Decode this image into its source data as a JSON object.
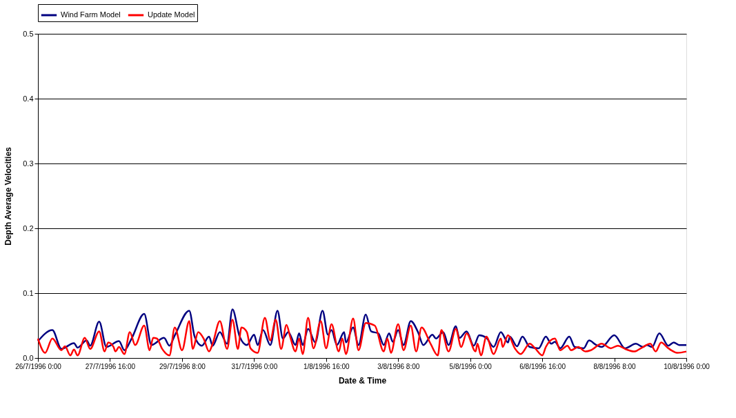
{
  "chart_data": {
    "type": "line",
    "xlabel": "Date & Time",
    "ylabel": "Depth Average Velocities",
    "ylim": [
      0,
      0.5
    ],
    "yticks": [
      {
        "value": 0,
        "label": "0.0"
      },
      {
        "value": 0.1,
        "label": "0.1"
      },
      {
        "value": 0.2,
        "label": "0.2"
      },
      {
        "value": 0.3,
        "label": "0.3"
      },
      {
        "value": 0.4,
        "label": "0.4"
      },
      {
        "value": 0.5,
        "label": "0.5"
      }
    ],
    "xlim": [
      "1996-07-26T00:00",
      "1996-08-10T00:00"
    ],
    "xticks": [
      {
        "value": "1996-07-26T00:00",
        "label": "26/7/1996 0:00"
      },
      {
        "value": "1996-07-27T16:00",
        "label": "27/7/1996 16:00"
      },
      {
        "value": "1996-07-29T08:00",
        "label": "29/7/1996 8:00"
      },
      {
        "value": "1996-07-31T00:00",
        "label": "31/7/1996 0:00"
      },
      {
        "value": "1996-08-01T16:00",
        "label": "1/8/1996 16:00"
      },
      {
        "value": "1996-08-03T08:00",
        "label": "3/8/1996 8:00"
      },
      {
        "value": "1996-08-05T00:00",
        "label": "5/8/1996 0:00"
      },
      {
        "value": "1996-08-06T16:00",
        "label": "6/8/1996 16:00"
      },
      {
        "value": "1996-08-08T08:00",
        "label": "8/8/1996 8:00"
      },
      {
        "value": "1996-08-10T00:00",
        "label": "10/8/1996 0:00"
      }
    ],
    "grid": "y",
    "legend": "top",
    "line_style": "solid",
    "series": [
      {
        "name": "Wind Farm Model",
        "color": "#000080",
        "x": [
          "1996-07-26T00:00",
          "1996-07-26T08:00",
          "1996-07-26T13:00",
          "1996-07-26T20:00",
          "1996-07-26T22:00",
          "1996-07-27T03:00",
          "1996-07-27T05:00",
          "1996-07-27T10:00",
          "1996-07-27T14:00",
          "1996-07-27T21:00",
          "1996-07-28T00:00",
          "1996-07-28T04:00",
          "1996-07-28T11:00",
          "1996-07-28T15:00",
          "1996-07-28T22:00",
          "1996-07-29T01:00",
          "1996-07-29T04:00",
          "1996-07-29T12:00",
          "1996-07-29T15:00",
          "1996-07-29T19:00",
          "1996-07-29T23:00",
          "1996-07-30T01:00",
          "1996-07-30T05:00",
          "1996-07-30T09:00",
          "1996-07-30T12:00",
          "1996-07-30T16:00",
          "1996-07-30T20:00",
          "1996-07-31T00:00",
          "1996-07-31T02:00",
          "1996-07-31T05:00",
          "1996-07-31T09:00",
          "1996-07-31T13:00",
          "1996-07-31T16:00",
          "1996-07-31T19:00",
          "1996-07-31T23:00",
          "1996-08-01T01:00",
          "1996-08-01T03:00",
          "1996-08-01T06:00",
          "1996-08-01T10:00",
          "1996-08-01T14:00",
          "1996-08-01T17:00",
          "1996-08-01T19:00",
          "1996-08-01T22:00",
          "1996-08-02T02:00",
          "1996-08-02T03:00",
          "1996-08-02T07:00",
          "1996-08-02T10:00",
          "1996-08-02T14:00",
          "1996-08-02T17:00",
          "1996-08-02T21:00",
          "1996-08-03T00:00",
          "1996-08-03T03:00",
          "1996-08-03T05:00",
          "1996-08-03T08:00",
          "1996-08-03T11:00",
          "1996-08-03T15:00",
          "1996-08-03T19:00",
          "1996-08-03T22:00",
          "1996-08-04T03:00",
          "1996-08-04T05:00",
          "1996-08-04T09:00",
          "1996-08-04T12:00",
          "1996-08-04T16:00",
          "1996-08-04T18:00",
          "1996-08-04T22:00",
          "1996-08-05T02:00",
          "1996-08-05T05:00",
          "1996-08-05T09:00",
          "1996-08-05T13:00",
          "1996-08-05T17:00",
          "1996-08-05T21:00",
          "1996-08-05T22:00",
          "1996-08-06T02:00",
          "1996-08-06T05:00",
          "1996-08-06T09:00",
          "1996-08-06T14:00",
          "1996-08-06T18:00",
          "1996-08-06T21:00",
          "1996-08-06T23:00",
          "1996-08-07T02:00",
          "1996-08-07T07:00",
          "1996-08-07T10:00",
          "1996-08-07T15:00",
          "1996-08-07T18:00",
          "1996-08-07T22:00",
          "1996-08-08T01:00",
          "1996-08-08T08:00",
          "1996-08-08T14:00",
          "1996-08-08T20:00",
          "1996-08-09T00:00",
          "1996-08-09T02:00",
          "1996-08-09T05:00",
          "1996-08-09T09:00",
          "1996-08-09T14:00",
          "1996-08-09T17:00",
          "1996-08-09T20:00",
          "1996-08-10T00:00"
        ],
        "values": [
          0.026,
          0.043,
          0.014,
          0.023,
          0.016,
          0.027,
          0.019,
          0.056,
          0.017,
          0.026,
          0.012,
          0.03,
          0.068,
          0.02,
          0.031,
          0.019,
          0.035,
          0.073,
          0.033,
          0.019,
          0.033,
          0.019,
          0.04,
          0.022,
          0.075,
          0.033,
          0.02,
          0.036,
          0.02,
          0.043,
          0.02,
          0.073,
          0.03,
          0.04,
          0.02,
          0.038,
          0.02,
          0.045,
          0.024,
          0.073,
          0.036,
          0.043,
          0.02,
          0.04,
          0.024,
          0.047,
          0.02,
          0.067,
          0.041,
          0.038,
          0.02,
          0.038,
          0.025,
          0.043,
          0.02,
          0.057,
          0.04,
          0.02,
          0.036,
          0.03,
          0.04,
          0.02,
          0.049,
          0.031,
          0.041,
          0.019,
          0.035,
          0.031,
          0.017,
          0.04,
          0.024,
          0.033,
          0.018,
          0.033,
          0.017,
          0.015,
          0.033,
          0.022,
          0.025,
          0.015,
          0.033,
          0.017,
          0.015,
          0.027,
          0.02,
          0.017,
          0.035,
          0.015,
          0.022,
          0.017,
          0.02,
          0.017,
          0.038,
          0.019,
          0.024,
          0.02,
          0.02
        ]
      },
      {
        "name": "Update Model",
        "color": "#ff0000",
        "x": [
          "1996-07-26T00:00",
          "1996-07-26T04:00",
          "1996-07-26T08:00",
          "1996-07-26T13:00",
          "1996-07-26T15:00",
          "1996-07-26T18:00",
          "1996-07-26T20:00",
          "1996-07-26T22:00",
          "1996-07-27T02:00",
          "1996-07-27T05:00",
          "1996-07-27T10:00",
          "1996-07-27T13:00",
          "1996-07-27T15:00",
          "1996-07-27T18:00",
          "1996-07-27T19:00",
          "1996-07-27T21:00",
          "1996-07-28T00:00",
          "1996-07-28T03:00",
          "1996-07-28T06:00",
          "1996-07-28T11:00",
          "1996-07-28T14:00",
          "1996-07-28T16:00",
          "1996-07-28T18:00",
          "1996-07-28T21:00",
          "1996-07-29T01:00",
          "1996-07-29T04:00",
          "1996-07-29T08:00",
          "1996-07-29T12:00",
          "1996-07-29T14:00",
          "1996-07-29T17:00",
          "1996-07-29T20:00",
          "1996-07-29T23:00",
          "1996-07-30T01:00",
          "1996-07-30T05:00",
          "1996-07-30T09:00",
          "1996-07-30T12:00",
          "1996-07-30T15:00",
          "1996-07-30T17:00",
          "1996-07-30T20:00",
          "1996-07-30T22:00",
          "1996-07-31T02:00",
          "1996-07-31T06:00",
          "1996-07-31T09:00",
          "1996-07-31T12:00",
          "1996-07-31T15:00",
          "1996-07-31T18:00",
          "1996-07-31T20:00",
          "1996-07-31T23:00",
          "1996-08-01T01:00",
          "1996-08-01T03:00",
          "1996-08-01T06:00",
          "1996-08-01T09:00",
          "1996-08-01T13:00",
          "1996-08-01T16:00",
          "1996-08-01T19:00",
          "1996-08-01T23:00",
          "1996-08-02T01:00",
          "1996-08-02T03:00",
          "1996-08-02T07:00",
          "1996-08-02T10:00",
          "1996-08-02T14:00",
          "1996-08-02T19:00",
          "1996-08-03T00:00",
          "1996-08-03T02:00",
          "1996-08-03T04:00",
          "1996-08-03T08:00",
          "1996-08-03T11:00",
          "1996-08-03T15:00",
          "1996-08-03T18:00",
          "1996-08-03T21:00",
          "1996-08-04T02:00",
          "1996-08-04T06:00",
          "1996-08-04T08:00",
          "1996-08-04T12:00",
          "1996-08-04T16:00",
          "1996-08-04T19:00",
          "1996-08-04T22:00",
          "1996-08-05T03:00",
          "1996-08-05T04:00",
          "1996-08-05T06:00",
          "1996-08-05T09:00",
          "1996-08-05T13:00",
          "1996-08-05T17:00",
          "1996-08-05T18:00",
          "1996-08-05T21:00",
          "1996-08-06T01:00",
          "1996-08-06T04:00",
          "1996-08-06T09:00",
          "1996-08-06T12:00",
          "1996-08-06T16:00",
          "1996-08-06T18:00",
          "1996-08-06T23:00",
          "1996-08-07T02:00",
          "1996-08-07T06:00",
          "1996-08-07T08:00",
          "1996-08-07T12:00",
          "1996-08-07T16:00",
          "1996-08-07T19:00",
          "1996-08-08T01:00",
          "1996-08-08T06:00",
          "1996-08-08T10:00",
          "1996-08-08T14:00",
          "1996-08-08T19:00",
          "1996-08-09T00:00",
          "1996-08-09T04:00",
          "1996-08-09T07:00",
          "1996-08-09T10:00",
          "1996-08-09T14:00",
          "1996-08-09T19:00",
          "1996-08-10T00:00"
        ],
        "values": [
          0.03,
          0.008,
          0.03,
          0.012,
          0.018,
          0.004,
          0.013,
          0.004,
          0.031,
          0.014,
          0.041,
          0.01,
          0.024,
          0.017,
          0.01,
          0.017,
          0.006,
          0.04,
          0.02,
          0.05,
          0.012,
          0.031,
          0.03,
          0.014,
          0.004,
          0.047,
          0.012,
          0.057,
          0.014,
          0.04,
          0.03,
          0.01,
          0.022,
          0.057,
          0.014,
          0.059,
          0.014,
          0.047,
          0.04,
          0.015,
          0.008,
          0.062,
          0.027,
          0.059,
          0.014,
          0.051,
          0.033,
          0.01,
          0.03,
          0.006,
          0.062,
          0.015,
          0.057,
          0.015,
          0.052,
          0.01,
          0.03,
          0.006,
          0.061,
          0.012,
          0.054,
          0.05,
          0.01,
          0.03,
          0.008,
          0.052,
          0.012,
          0.05,
          0.01,
          0.047,
          0.022,
          0.004,
          0.043,
          0.01,
          0.045,
          0.017,
          0.038,
          0.01,
          0.022,
          0.004,
          0.033,
          0.006,
          0.03,
          0.017,
          0.035,
          0.014,
          0.006,
          0.022,
          0.015,
          0.004,
          0.017,
          0.03,
          0.012,
          0.019,
          0.012,
          0.017,
          0.01,
          0.012,
          0.022,
          0.015,
          0.019,
          0.014,
          0.01,
          0.017,
          0.022,
          0.01,
          0.024,
          0.015,
          0.008,
          0.01
        ]
      }
    ]
  }
}
